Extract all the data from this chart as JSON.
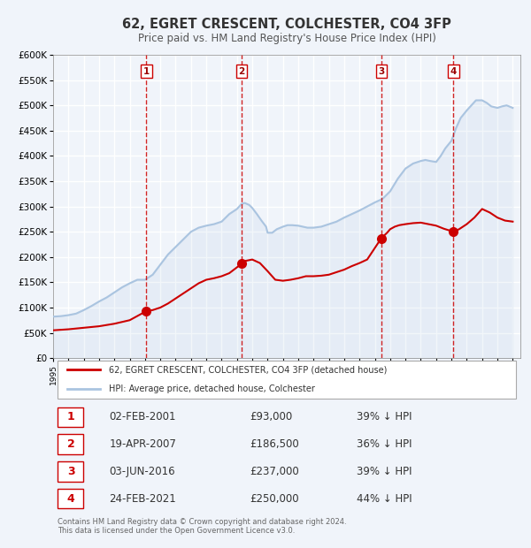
{
  "title": "62, EGRET CRESCENT, COLCHESTER, CO4 3FP",
  "subtitle": "Price paid vs. HM Land Registry's House Price Index (HPI)",
  "background_color": "#f0f4fa",
  "plot_background": "#f0f4fa",
  "grid_color": "#ffffff",
  "x_start": 1995.0,
  "x_end": 2025.5,
  "y_min": 0,
  "y_max": 600000,
  "y_ticks": [
    0,
    50000,
    100000,
    150000,
    200000,
    250000,
    300000,
    350000,
    400000,
    450000,
    500000,
    550000,
    600000
  ],
  "x_ticks": [
    1995,
    1996,
    1997,
    1998,
    1999,
    2000,
    2001,
    2002,
    2003,
    2004,
    2005,
    2006,
    2007,
    2008,
    2009,
    2010,
    2011,
    2012,
    2013,
    2014,
    2015,
    2016,
    2017,
    2018,
    2019,
    2020,
    2021,
    2022,
    2023,
    2024,
    2025
  ],
  "hpi_color": "#aac4e0",
  "price_color": "#cc0000",
  "vline_color": "#cc0000",
  "purchases": [
    {
      "label": "1",
      "year": 2001.09,
      "price": 93000,
      "date": "02-FEB-2001",
      "amount": "£93,000",
      "pct": "39% ↓ HPI"
    },
    {
      "label": "2",
      "year": 2007.3,
      "price": 186500,
      "date": "19-APR-2007",
      "amount": "£186,500",
      "pct": "36% ↓ HPI"
    },
    {
      "label": "3",
      "year": 2016.42,
      "price": 237000,
      "date": "03-JUN-2016",
      "amount": "£237,000",
      "pct": "39% ↓ HPI"
    },
    {
      "label": "4",
      "year": 2021.13,
      "price": 250000,
      "date": "24-FEB-2021",
      "amount": "£250,000",
      "pct": "44% ↓ HPI"
    }
  ],
  "legend_line1": "62, EGRET CRESCENT, COLCHESTER, CO4 3FP (detached house)",
  "legend_line2": "HPI: Average price, detached house, Colchester",
  "footer": "Contains HM Land Registry data © Crown copyright and database right 2024.\nThis data is licensed under the Open Government Licence v3.0.",
  "hpi_data_x": [
    1995.0,
    1995.5,
    1996.0,
    1996.5,
    1997.0,
    1997.5,
    1998.0,
    1998.5,
    1999.0,
    1999.5,
    2000.0,
    2000.5,
    2001.0,
    2001.5,
    2002.0,
    2002.5,
    2003.0,
    2003.5,
    2004.0,
    2004.5,
    2005.0,
    2005.5,
    2006.0,
    2006.5,
    2007.0,
    2007.3,
    2007.5,
    2007.8,
    2008.0,
    2008.3,
    2008.6,
    2008.9,
    2009.0,
    2009.3,
    2009.6,
    2010.0,
    2010.3,
    2010.6,
    2011.0,
    2011.3,
    2011.6,
    2012.0,
    2012.5,
    2013.0,
    2013.5,
    2014.0,
    2014.5,
    2015.0,
    2015.5,
    2016.0,
    2016.5,
    2017.0,
    2017.5,
    2018.0,
    2018.5,
    2019.0,
    2019.3,
    2019.6,
    2020.0,
    2020.3,
    2020.6,
    2021.0,
    2021.3,
    2021.6,
    2022.0,
    2022.3,
    2022.6,
    2023.0,
    2023.3,
    2023.6,
    2024.0,
    2024.3,
    2024.6,
    2025.0
  ],
  "hpi_data_y": [
    82000,
    83000,
    85000,
    88000,
    95000,
    103000,
    112000,
    120000,
    130000,
    140000,
    148000,
    155000,
    155000,
    165000,
    185000,
    205000,
    220000,
    235000,
    250000,
    258000,
    262000,
    265000,
    270000,
    285000,
    295000,
    305000,
    307000,
    303000,
    297000,
    285000,
    272000,
    260000,
    248000,
    248000,
    255000,
    260000,
    263000,
    263000,
    262000,
    260000,
    258000,
    258000,
    260000,
    265000,
    270000,
    278000,
    285000,
    292000,
    300000,
    308000,
    315000,
    330000,
    355000,
    375000,
    385000,
    390000,
    392000,
    390000,
    388000,
    400000,
    415000,
    430000,
    455000,
    475000,
    490000,
    500000,
    510000,
    510000,
    505000,
    498000,
    495000,
    498000,
    500000,
    495000
  ],
  "price_data_x": [
    1995.0,
    1996.0,
    1997.0,
    1998.0,
    1999.0,
    2000.0,
    2001.09,
    2001.5,
    2002.0,
    2002.5,
    2003.0,
    2003.5,
    2004.0,
    2004.5,
    2005.0,
    2005.5,
    2006.0,
    2006.5,
    2007.3,
    2007.5,
    2008.0,
    2008.5,
    2009.0,
    2009.5,
    2010.0,
    2010.5,
    2011.0,
    2011.5,
    2012.0,
    2012.5,
    2013.0,
    2013.5,
    2014.0,
    2014.5,
    2015.0,
    2015.5,
    2016.42,
    2016.8,
    2017.0,
    2017.3,
    2017.6,
    2018.0,
    2018.5,
    2019.0,
    2019.5,
    2020.0,
    2020.5,
    2021.13,
    2021.5,
    2022.0,
    2022.5,
    2023.0,
    2023.5,
    2024.0,
    2024.5,
    2025.0
  ],
  "price_data_y": [
    55000,
    57000,
    60000,
    63000,
    68000,
    75000,
    93000,
    95000,
    100000,
    108000,
    118000,
    128000,
    138000,
    148000,
    155000,
    158000,
    162000,
    168000,
    186500,
    192000,
    195000,
    188000,
    172000,
    155000,
    153000,
    155000,
    158000,
    162000,
    162000,
    163000,
    165000,
    170000,
    175000,
    182000,
    188000,
    195000,
    237000,
    248000,
    255000,
    260000,
    263000,
    265000,
    267000,
    268000,
    265000,
    262000,
    256000,
    250000,
    255000,
    265000,
    278000,
    295000,
    288000,
    278000,
    272000,
    270000
  ]
}
